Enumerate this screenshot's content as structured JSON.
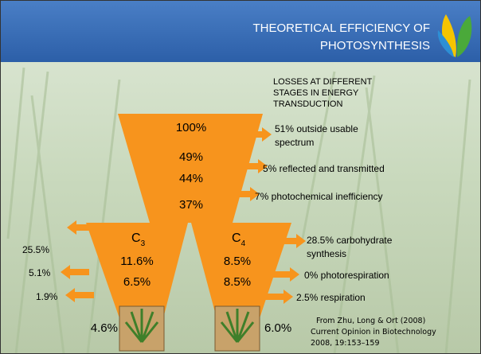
{
  "header": {
    "title_lines": [
      "THEORETICAL EFFICIENCY OF",
      "PHOTOSYNTHESIS"
    ]
  },
  "losses_heading": [
    "LOSSES AT DIFFERENT",
    "STAGES IN ENERGY",
    "TRANSDUCTION"
  ],
  "funnel": {
    "levels": [
      "100%",
      "49%",
      "44%",
      "37%"
    ],
    "losses": [
      [
        "51% outside usable",
        "spectrum"
      ],
      [
        "5% reflected and transmitted"
      ],
      [
        "7% photochemical inefficiency"
      ]
    ]
  },
  "c3": {
    "letter": "C",
    "sub": "3",
    "levels": [
      "11.6%",
      "6.5%"
    ],
    "final": "4.6%",
    "losses": [
      "25.5%",
      "5.1%",
      "1.9%"
    ]
  },
  "c4": {
    "letter": "C",
    "sub": "4",
    "levels": [
      "8.5%",
      "8.5%"
    ],
    "final": "6.0%",
    "losses": [
      [
        "28.5% carbohydrate",
        "synthesis"
      ],
      [
        "0% photorespiration"
      ],
      [
        "2.5% respiration"
      ]
    ]
  },
  "citation": [
    "From Zhu, Long & Ort (2008)",
    "Current Opinion in Biotechnology",
    "2008, 19:153–159"
  ]
}
